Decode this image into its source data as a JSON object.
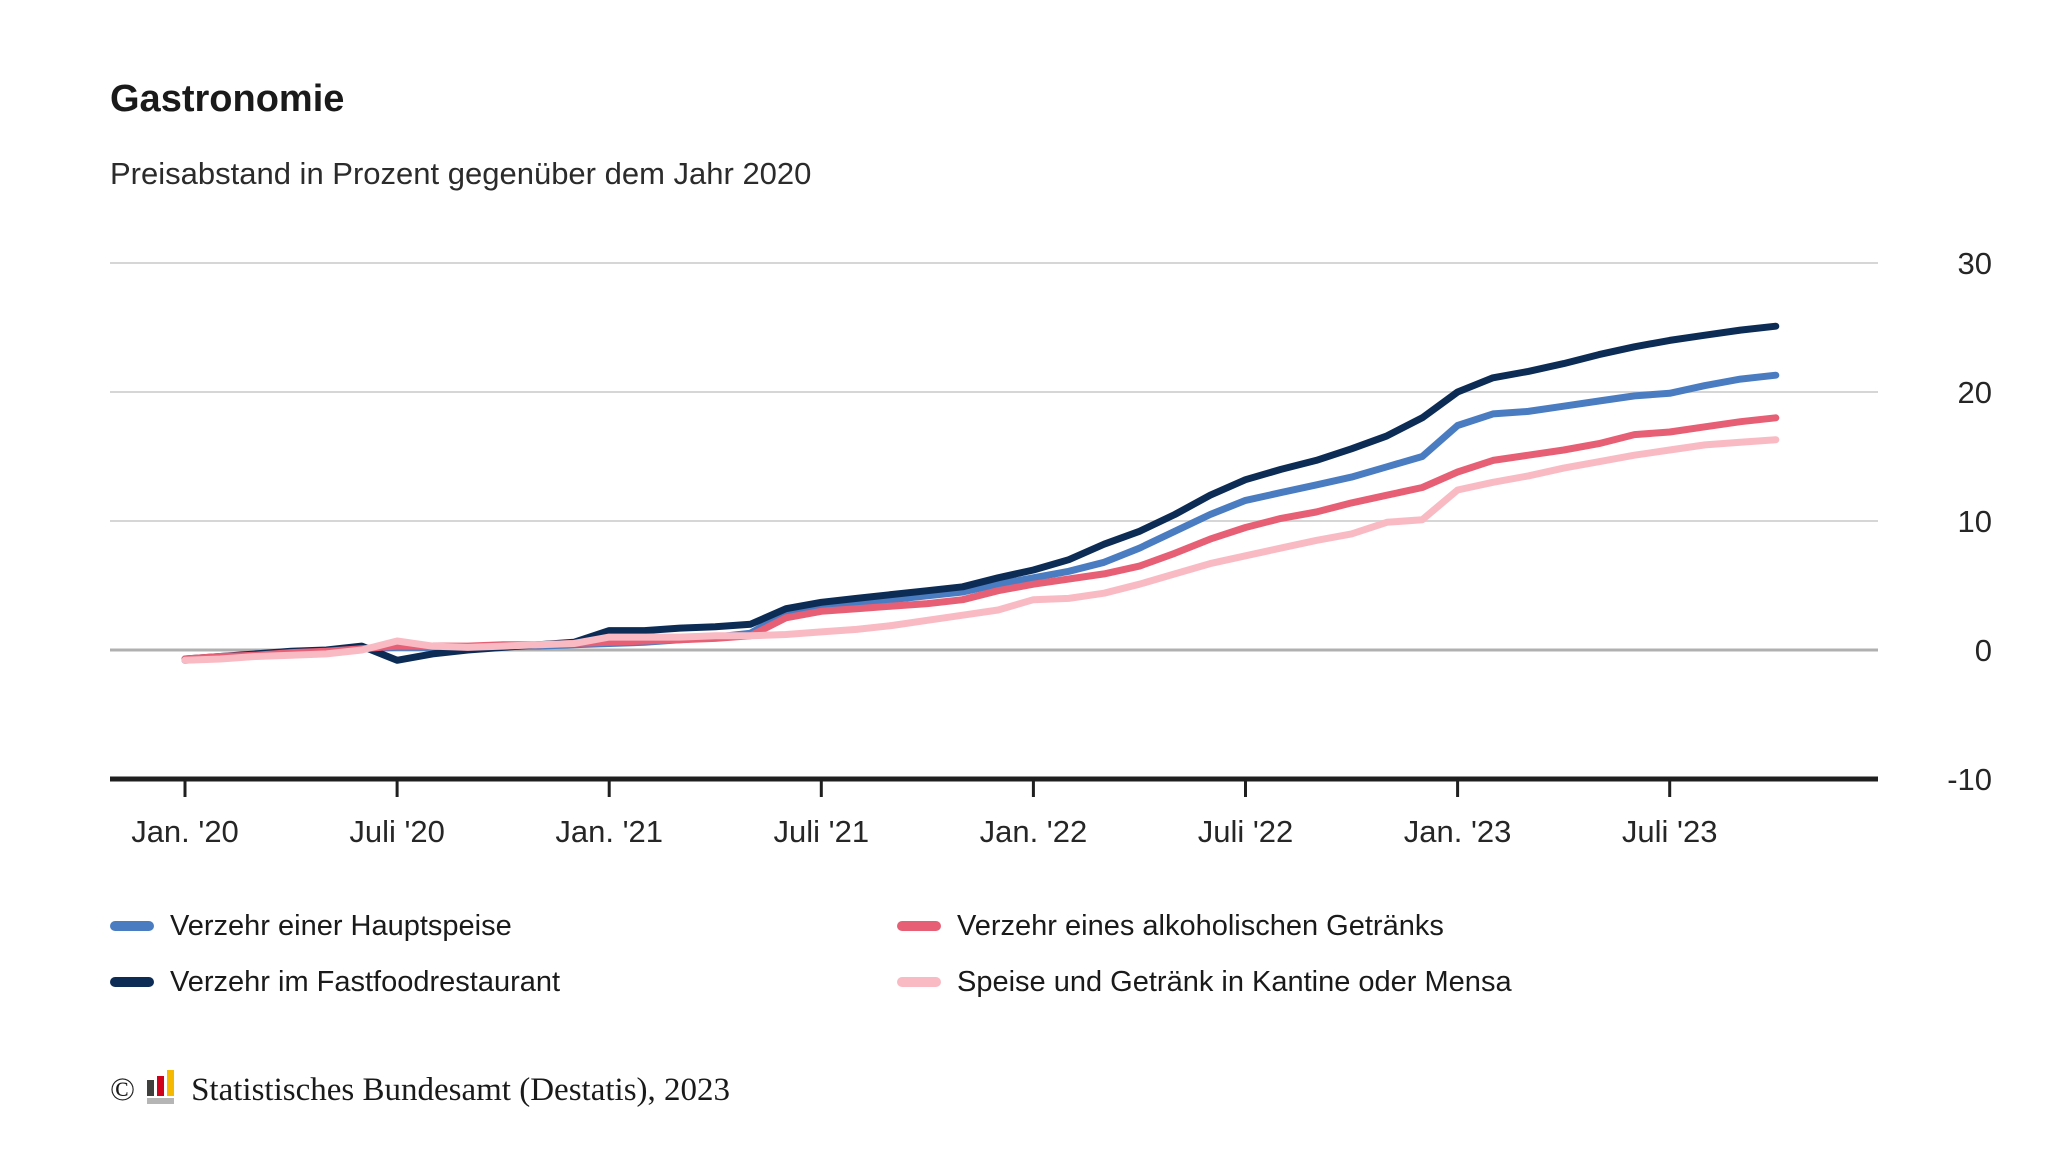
{
  "header": {
    "title": "Gastronomie",
    "subtitle": "Preisabstand in Prozent gegenüber dem Jahr 2020"
  },
  "chart_data": {
    "type": "line",
    "title": "Gastronomie",
    "subtitle": "Preisabstand in Prozent gegenüber dem Jahr 2020",
    "grid": "horizontal",
    "legend_position": "bottom",
    "ylim": [
      -10,
      30
    ],
    "y_ticks": [
      30,
      20,
      10,
      0,
      -10
    ],
    "x_tick_labels": [
      "Jan. '20",
      "Juli '20",
      "Jan. '21",
      "Juli '21",
      "Jan. '22",
      "Juli '22",
      "Jan. '23",
      "Juli '23"
    ],
    "x_tick_month_index": [
      0,
      6,
      12,
      18,
      24,
      30,
      36,
      42
    ],
    "categories": [
      "2020-01",
      "2020-02",
      "2020-03",
      "2020-04",
      "2020-05",
      "2020-06",
      "2020-07",
      "2020-08",
      "2020-09",
      "2020-10",
      "2020-11",
      "2020-12",
      "2021-01",
      "2021-02",
      "2021-03",
      "2021-04",
      "2021-05",
      "2021-06",
      "2021-07",
      "2021-08",
      "2021-09",
      "2021-10",
      "2021-11",
      "2021-12",
      "2022-01",
      "2022-02",
      "2022-03",
      "2022-04",
      "2022-05",
      "2022-06",
      "2022-07",
      "2022-08",
      "2022-09",
      "2022-10",
      "2022-11",
      "2022-12",
      "2023-01",
      "2023-02",
      "2023-03",
      "2023-04",
      "2023-05",
      "2023-06",
      "2023-07",
      "2023-08",
      "2023-09",
      "2023-10"
    ],
    "series": [
      {
        "name": "Verzehr einer Hauptspeise",
        "color": "#4a7cc2",
        "values": [
          -0.8,
          -0.6,
          -0.4,
          -0.2,
          -0.1,
          0.1,
          0.2,
          0.2,
          0.2,
          0.3,
          0.3,
          0.4,
          0.5,
          0.6,
          0.8,
          1.0,
          1.3,
          2.9,
          3.4,
          3.7,
          3.9,
          4.2,
          4.5,
          5.1,
          5.6,
          6.1,
          6.8,
          7.9,
          9.2,
          10.5,
          11.6,
          12.2,
          12.8,
          13.4,
          14.2,
          15.0,
          17.4,
          18.3,
          18.5,
          18.9,
          19.3,
          19.7,
          19.9,
          20.5,
          21.0,
          21.3
        ]
      },
      {
        "name": "Verzehr im Fastfoodrestaurant",
        "color": "#0c2c56",
        "values": [
          -0.7,
          -0.5,
          -0.3,
          -0.1,
          0.0,
          0.3,
          -0.8,
          -0.3,
          0.0,
          0.2,
          0.4,
          0.6,
          1.5,
          1.5,
          1.7,
          1.8,
          2.0,
          3.2,
          3.7,
          4.0,
          4.3,
          4.6,
          4.9,
          5.6,
          6.2,
          7.0,
          8.2,
          9.2,
          10.5,
          12.0,
          13.2,
          14.0,
          14.7,
          15.6,
          16.6,
          18.0,
          20.0,
          21.1,
          21.6,
          22.2,
          22.9,
          23.5,
          24.0,
          24.4,
          24.8,
          25.1
        ]
      },
      {
        "name": "Verzehr eines alkoholischen Getränks",
        "color": "#e75f74",
        "values": [
          -0.7,
          -0.5,
          -0.4,
          -0.2,
          -0.1,
          0.1,
          0.3,
          0.3,
          0.3,
          0.4,
          0.4,
          0.5,
          0.6,
          0.7,
          0.8,
          0.9,
          1.1,
          2.5,
          3.0,
          3.2,
          3.4,
          3.6,
          3.9,
          4.6,
          5.1,
          5.5,
          5.9,
          6.5,
          7.5,
          8.6,
          9.5,
          10.2,
          10.7,
          11.4,
          12.0,
          12.6,
          13.8,
          14.7,
          15.1,
          15.5,
          16.0,
          16.7,
          16.9,
          17.3,
          17.7,
          18.0
        ]
      },
      {
        "name": "Speise und Getränk in Kantine oder Mensa",
        "color": "#f9bac3",
        "values": [
          -0.8,
          -0.7,
          -0.5,
          -0.4,
          -0.3,
          0.0,
          0.7,
          0.3,
          0.2,
          0.3,
          0.4,
          0.5,
          1.0,
          1.0,
          1.0,
          1.1,
          1.1,
          1.2,
          1.4,
          1.6,
          1.9,
          2.3,
          2.7,
          3.1,
          3.9,
          4.0,
          4.4,
          5.1,
          5.9,
          6.7,
          7.3,
          7.9,
          8.5,
          9.0,
          9.9,
          10.1,
          12.4,
          13.0,
          13.5,
          14.1,
          14.6,
          15.1,
          15.5,
          15.9,
          16.1,
          16.3
        ]
      }
    ]
  },
  "legend": {
    "items": [
      {
        "label": "Verzehr einer Hauptspeise",
        "color": "#4a7cc2"
      },
      {
        "label": "Verzehr eines alkoholischen Getränks",
        "color": "#e75f74"
      },
      {
        "label": "Verzehr im Fastfoodrestaurant",
        "color": "#0c2c56"
      },
      {
        "label": "Speise und Getränk in Kantine oder Mensa",
        "color": "#f9bac3"
      }
    ]
  },
  "footer": {
    "copyright": "©",
    "source": "Statistisches Bundesamt (Destatis), 2023",
    "logo_colors": {
      "dark": "#3f3f3e",
      "red": "#d0021b",
      "gold": "#f5b901",
      "base": "#b5b5b5"
    }
  }
}
